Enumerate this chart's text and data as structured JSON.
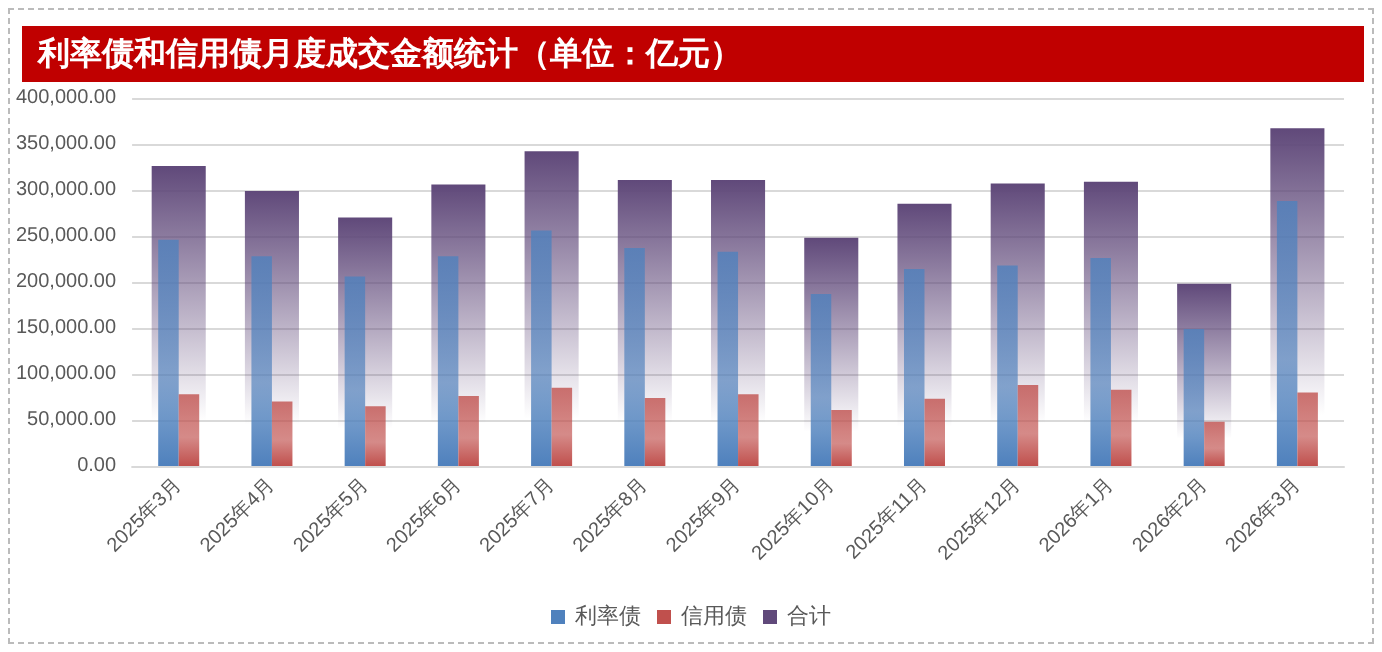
{
  "chart_data": {
    "type": "bar",
    "title": "利率债和信用债月度成交金额统计（单位：亿元）",
    "categories": [
      "2025年3月",
      "2025年4月",
      "2025年5月",
      "2025年6月",
      "2025年7月",
      "2025年8月",
      "2025年9月",
      "2025年10月",
      "2025年11月",
      "2025年12月",
      "2026年1月",
      "2026年2月",
      "2026年3月"
    ],
    "series": [
      {
        "name": "利率债",
        "color": "#4f81bd",
        "values": [
          246000,
          228000,
          206000,
          228000,
          256000,
          237000,
          233000,
          187000,
          214000,
          218000,
          226000,
          149000,
          288000
        ]
      },
      {
        "name": "信用债",
        "color": "#c0504d",
        "values": [
          78000,
          70000,
          65000,
          76000,
          85000,
          74000,
          78000,
          61000,
          73000,
          88000,
          83000,
          48000,
          80000
        ]
      },
      {
        "name": "合计",
        "color": "#60497a",
        "values": [
          326000,
          299000,
          270000,
          306000,
          342000,
          311000,
          311000,
          248000,
          285000,
          307000,
          309000,
          198000,
          367000
        ]
      }
    ],
    "ylim": [
      0,
      400000
    ],
    "yticks": [
      {
        "value": 0,
        "label": "0.00"
      },
      {
        "value": 50000,
        "label": "50,000.00"
      },
      {
        "value": 100000,
        "label": "100,000.00"
      },
      {
        "value": 150000,
        "label": "150,000.00"
      },
      {
        "value": 200000,
        "label": "200,000.00"
      },
      {
        "value": 250000,
        "label": "250,000.00"
      },
      {
        "value": 300000,
        "label": "300,000.00"
      },
      {
        "value": 350000,
        "label": "350,000.00"
      },
      {
        "value": 400000,
        "label": "400,000.00"
      }
    ],
    "grid": "y",
    "legend": "bottom"
  }
}
